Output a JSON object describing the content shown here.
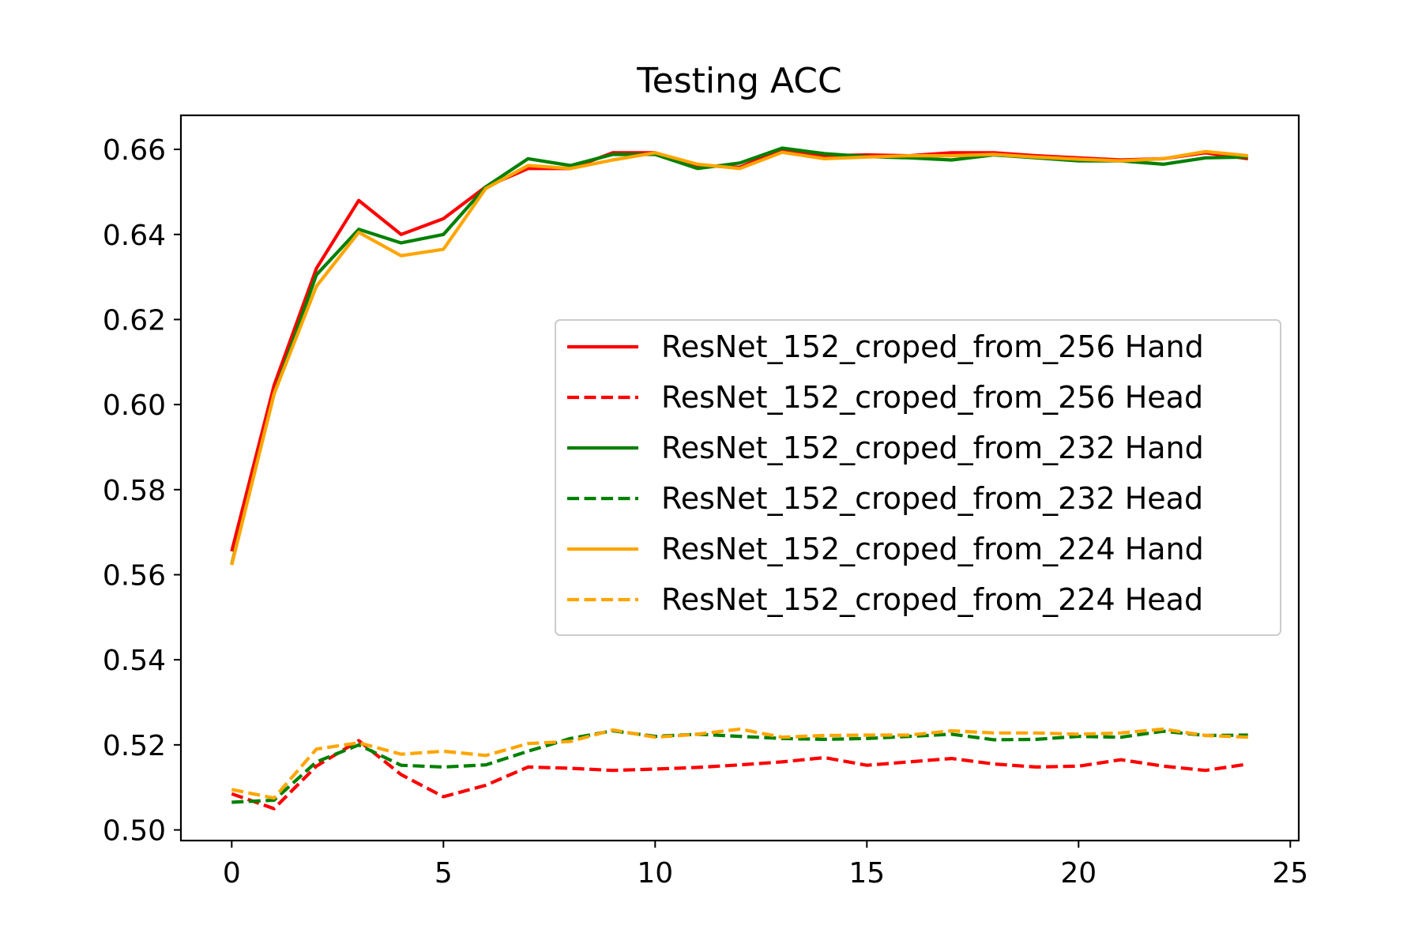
{
  "chart_data": {
    "type": "line",
    "title": "Testing ACC",
    "xlabel": "",
    "ylabel": "",
    "xlim": [
      -1.2,
      25.2
    ],
    "ylim": [
      0.4975,
      0.668
    ],
    "xticks": [
      0,
      5,
      10,
      15,
      20,
      25
    ],
    "xtick_labels": [
      "0",
      "5",
      "10",
      "15",
      "20",
      "25"
    ],
    "yticks": [
      0.5,
      0.52,
      0.54,
      0.56,
      0.58,
      0.6,
      0.62,
      0.64,
      0.66
    ],
    "ytick_labels": [
      "0.50",
      "0.52",
      "0.54",
      "0.56",
      "0.58",
      "0.60",
      "0.62",
      "0.64",
      "0.66"
    ],
    "grid": false,
    "legend_position": "center-right",
    "x": [
      0,
      1,
      2,
      3,
      4,
      5,
      6,
      7,
      8,
      9,
      10,
      11,
      12,
      13,
      14,
      15,
      16,
      17,
      18,
      19,
      20,
      21,
      22,
      23,
      24
    ],
    "series": [
      {
        "name": "ResNet_152_croped_from_256 Hand",
        "color": "#ff0000",
        "style": "solid",
        "values": [
          0.5655,
          0.6045,
          0.632,
          0.648,
          0.64,
          0.6437,
          0.6512,
          0.6555,
          0.6555,
          0.6592,
          0.6592,
          0.6562,
          0.6558,
          0.66,
          0.6585,
          0.6587,
          0.6585,
          0.6592,
          0.6592,
          0.6585,
          0.658,
          0.6575,
          0.6578,
          0.6592,
          0.6578
        ]
      },
      {
        "name": "ResNet_152_croped_from_256 Head",
        "color": "#ff0000",
        "style": "dashed",
        "values": [
          0.5085,
          0.505,
          0.515,
          0.521,
          0.513,
          0.5078,
          0.5105,
          0.5148,
          0.5145,
          0.514,
          0.5143,
          0.5147,
          0.5153,
          0.516,
          0.517,
          0.5152,
          0.516,
          0.5168,
          0.5155,
          0.5148,
          0.515,
          0.5165,
          0.515,
          0.514,
          0.5155
        ]
      },
      {
        "name": "ResNet_152_croped_from_232 Hand",
        "color": "#008000",
        "style": "solid",
        "values": [
          0.5625,
          0.6025,
          0.6305,
          0.6412,
          0.638,
          0.64,
          0.6512,
          0.6578,
          0.6562,
          0.6588,
          0.6588,
          0.6555,
          0.6568,
          0.6603,
          0.659,
          0.6583,
          0.658,
          0.6575,
          0.6587,
          0.658,
          0.6573,
          0.6573,
          0.6565,
          0.658,
          0.6582
        ]
      },
      {
        "name": "ResNet_152_croped_from_232 Head",
        "color": "#008000",
        "style": "dashed",
        "values": [
          0.5065,
          0.507,
          0.516,
          0.52,
          0.5152,
          0.5148,
          0.5153,
          0.5185,
          0.5215,
          0.5233,
          0.522,
          0.5225,
          0.522,
          0.5215,
          0.5213,
          0.5215,
          0.522,
          0.5225,
          0.5212,
          0.5213,
          0.522,
          0.5218,
          0.5232,
          0.5222,
          0.5223
        ]
      },
      {
        "name": "ResNet_152_croped_from_224 Hand",
        "color": "#ffa500",
        "style": "solid",
        "values": [
          0.5623,
          0.6025,
          0.6278,
          0.6405,
          0.635,
          0.6365,
          0.6508,
          0.6562,
          0.6555,
          0.6575,
          0.6592,
          0.6565,
          0.6555,
          0.6593,
          0.6578,
          0.6582,
          0.6585,
          0.6585,
          0.6588,
          0.6582,
          0.6577,
          0.6573,
          0.6578,
          0.6595,
          0.6585
        ]
      },
      {
        "name": "ResNet_152_croped_from_224 Head",
        "color": "#ffa500",
        "style": "dashed",
        "values": [
          0.5095,
          0.5075,
          0.519,
          0.5205,
          0.5178,
          0.5185,
          0.5175,
          0.5203,
          0.5208,
          0.5235,
          0.5218,
          0.5225,
          0.5237,
          0.5218,
          0.5222,
          0.5223,
          0.5223,
          0.5233,
          0.5228,
          0.5228,
          0.5225,
          0.5228,
          0.5237,
          0.5222,
          0.5218
        ]
      }
    ]
  }
}
